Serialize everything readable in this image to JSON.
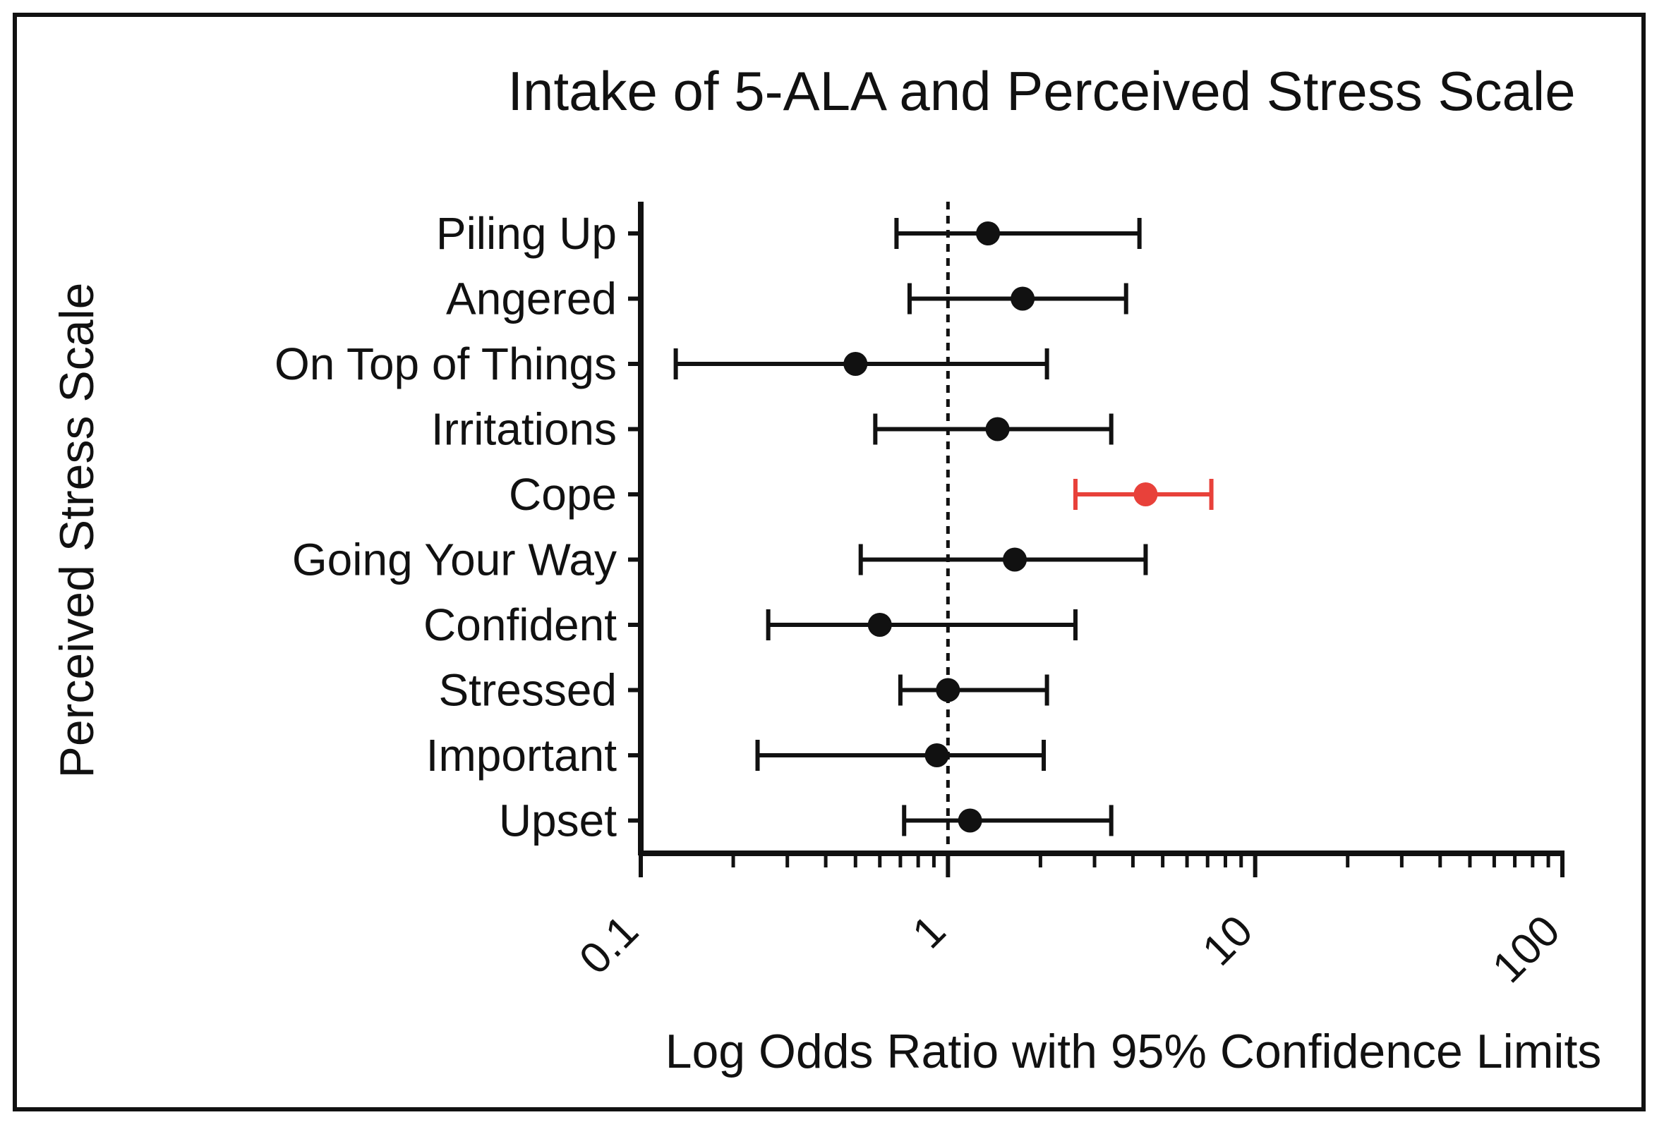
{
  "chart_data": {
    "type": "forest",
    "title": "Intake of 5-ALA and Perceived Stress Scale",
    "xlabel": "Log Odds Ratio with 95% Confidence Limits",
    "ylabel": "Perceived Stress Scale",
    "xscale": "log",
    "xlim": [
      0.1,
      100
    ],
    "x_ticks": [
      0.1,
      1,
      10,
      100
    ],
    "x_tick_labels": [
      "0.1",
      "1",
      "10",
      "100"
    ],
    "reference_line": 1,
    "colors": {
      "default": "#111111",
      "highlight": "#e8413a"
    },
    "rows": [
      {
        "label": "Piling Up",
        "estimate": 1.35,
        "lower": 0.68,
        "upper": 4.2,
        "highlight": false
      },
      {
        "label": "Angered",
        "estimate": 1.75,
        "lower": 0.75,
        "upper": 3.8,
        "highlight": false
      },
      {
        "label": "On Top of Things",
        "estimate": 0.5,
        "lower": 0.13,
        "upper": 2.1,
        "highlight": false
      },
      {
        "label": "Irritations",
        "estimate": 1.45,
        "lower": 0.58,
        "upper": 3.4,
        "highlight": false
      },
      {
        "label": "Cope",
        "estimate": 4.4,
        "lower": 2.6,
        "upper": 7.2,
        "highlight": true
      },
      {
        "label": "Going Your Way",
        "estimate": 1.65,
        "lower": 0.52,
        "upper": 4.4,
        "highlight": false
      },
      {
        "label": "Confident",
        "estimate": 0.6,
        "lower": 0.26,
        "upper": 2.6,
        "highlight": false
      },
      {
        "label": "Stressed",
        "estimate": 1.0,
        "lower": 0.7,
        "upper": 2.1,
        "highlight": false
      },
      {
        "label": "Important",
        "estimate": 0.92,
        "lower": 0.24,
        "upper": 2.05,
        "highlight": false
      },
      {
        "label": "Upset",
        "estimate": 1.18,
        "lower": 0.72,
        "upper": 3.4,
        "highlight": false
      }
    ]
  }
}
